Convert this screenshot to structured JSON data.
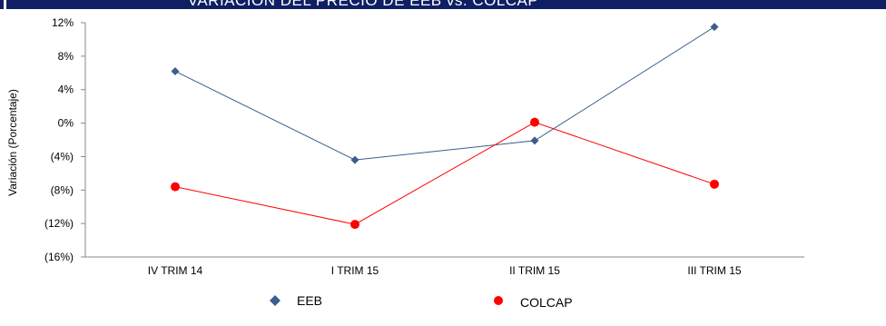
{
  "header": {
    "title": "VARIACIÓN DEL PRECIO DE EEB vs. COLCAP"
  },
  "chart_data": {
    "type": "line",
    "title": "",
    "xlabel": "",
    "ylabel": "Variación (Porcentaje)",
    "categories": [
      "IV TRIM 14",
      "I TRIM 15",
      "II TRIM 15",
      "III TRIM 15"
    ],
    "ylim": [
      -16,
      12
    ],
    "yticks": [
      12,
      8,
      4,
      0,
      -4,
      -8,
      -12,
      -16
    ],
    "ytick_labels": [
      "12%",
      "8%",
      "4%",
      "0%",
      "(4%)",
      "(8%)",
      "(12%)",
      "(16%)"
    ],
    "grid": false,
    "legend": "bottom",
    "series": [
      {
        "name": "EEB",
        "values": [
          6.2,
          -4.4,
          -2.1,
          11.5
        ],
        "color": "#3b5e8c",
        "marker": "diamond"
      },
      {
        "name": "COLCAP",
        "values": [
          -7.6,
          -12.1,
          0.1,
          -7.3
        ],
        "color": "#ff0000",
        "marker": "circle"
      }
    ]
  }
}
